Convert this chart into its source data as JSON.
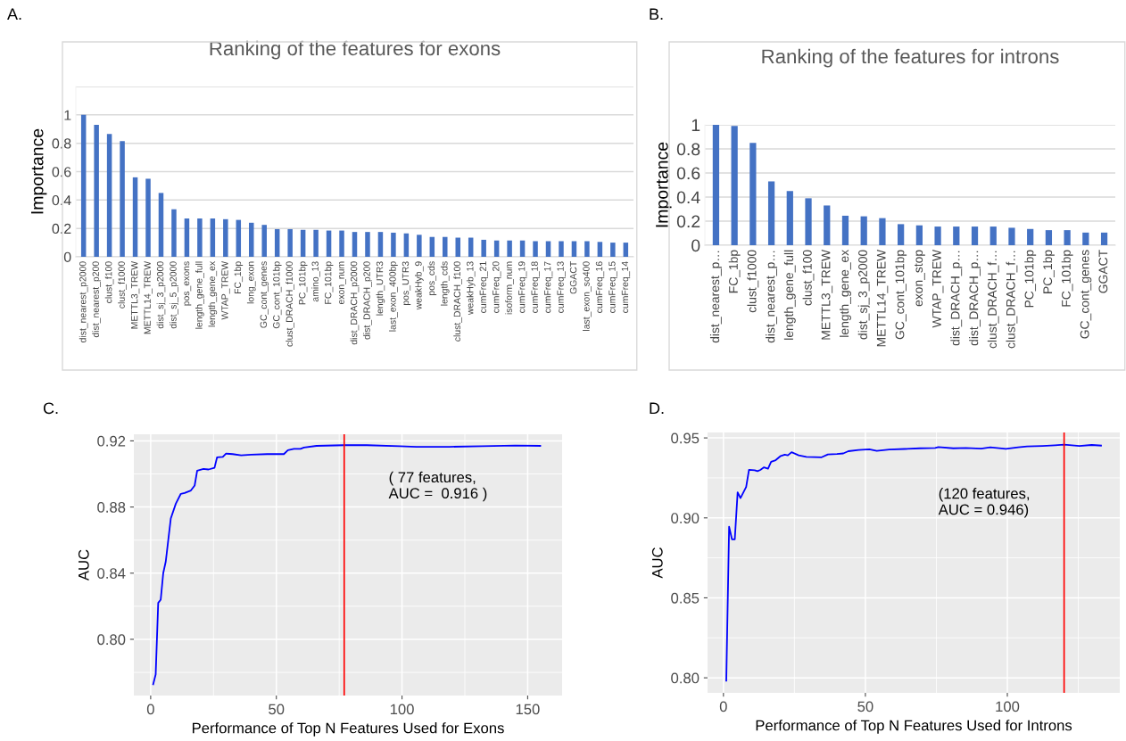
{
  "chart_data": [
    {
      "type": "bar",
      "title": "Ranking of the features for exons",
      "ylabel": "Importance",
      "annotations": [
        "A."
      ],
      "categories": [
        "dist_nearest_p2000",
        "dist_nearest_p200",
        "clust_f100",
        "clust_f1000",
        "METTL3_TREW",
        "METTL14_TREW",
        "dist_sj_3_p2000",
        "dist_sj_5_p2000",
        "pos_exons",
        "length_gene_full",
        "length_gene_ex",
        "WTAP_TREW",
        "FC_1bp",
        "long_exon",
        "GC_cont_genes",
        "GC_cont_101bp",
        "clust_DRACH_f1000",
        "PC_101bp",
        "amino_13",
        "FC_101bp",
        "exon_num",
        "dist_DRACH_p2000",
        "dist_DRACH_p200",
        "length_UTR3",
        "last_exon_400bp",
        "pos_UTR3",
        "weakHyb_9",
        "pos_cds",
        "length_cds",
        "clust_DRACH_f100",
        "weakHyb_13",
        "cumFreq_21",
        "cumFreq_20",
        "isoform_num",
        "cumFreq_19",
        "cumFreq_18",
        "cumFreq_17",
        "cumFreq_13",
        "GGACT",
        "last_exon_so400",
        "cumFreq_16",
        "cumFreq_15",
        "cumFreq_14"
      ],
      "values": [
        1,
        0.93,
        0.865,
        0.815,
        0.56,
        0.55,
        0.45,
        0.335,
        0.27,
        0.27,
        0.27,
        0.265,
        0.26,
        0.24,
        0.225,
        0.195,
        0.195,
        0.19,
        0.19,
        0.185,
        0.185,
        0.175,
        0.175,
        0.175,
        0.17,
        0.165,
        0.155,
        0.14,
        0.14,
        0.135,
        0.135,
        0.12,
        0.115,
        0.115,
        0.115,
        0.11,
        0.11,
        0.11,
        0.11,
        0.11,
        0.105,
        0.1,
        0.1
      ],
      "color": "#4472c4",
      "ylim": [
        0,
        1.2
      ],
      "yticks": [
        0,
        0.2,
        0.4,
        0.6,
        0.8,
        1,
        {
          "value": 1.2,
          "label": null
        }
      ],
      "grid": "y"
    },
    {
      "type": "bar",
      "title": "Ranking of the features for introns",
      "ylabel": "Importance",
      "annotations": [
        "B."
      ],
      "categories": [
        "dist_nearest_p…",
        "FC_1bp",
        "clust_f1000",
        "dist_nearest_p…",
        "length_gene_full",
        "clust_f100",
        "METTL3_TREW",
        "length_gene_ex",
        "dist_sj_3_p2000",
        "METTL14_TREW",
        "GC_cont_101bp",
        "exon_stop",
        "WTAP_TREW",
        "dist_DRACH_p…",
        "dist_DRACH_p…",
        "clust_DRACH_f…",
        "clust_DRACH_f…",
        "PC_101bp",
        "PC_1bp",
        "FC_101bp",
        "GC_cont_genes",
        "GGACT"
      ],
      "values": [
        1,
        0.99,
        0.85,
        0.53,
        0.45,
        0.39,
        0.33,
        0.245,
        0.24,
        0.225,
        0.175,
        0.165,
        0.155,
        0.155,
        0.155,
        0.155,
        0.145,
        0.135,
        0.125,
        0.125,
        0.105,
        0.105
      ],
      "color": "#4472c4",
      "ylim": [
        0,
        1
      ],
      "yticks": [
        0,
        0.2,
        0.4,
        0.6,
        0.8,
        1
      ],
      "grid": "y"
    },
    {
      "type": "line",
      "xlabel": "Performance of Top N Features Used for Exons",
      "ylabel": "AUC",
      "annotations": [
        "C."
      ],
      "x": [
        1,
        2,
        3,
        4,
        5,
        6,
        7,
        8,
        10,
        12,
        13.5,
        16,
        17.5,
        18.5,
        21,
        23,
        25.4,
        26.4,
        28.7,
        30,
        32.6,
        36,
        40,
        46.4,
        53,
        54.6,
        57,
        59.6,
        61,
        66,
        77,
        86,
        99,
        105.7,
        118.8,
        132,
        145,
        155
      ],
      "values": [
        0.7728,
        0.7788,
        0.822,
        0.824,
        0.84,
        0.847,
        0.86,
        0.873,
        0.882,
        0.888,
        0.8885,
        0.89,
        0.893,
        0.902,
        0.903,
        0.9027,
        0.9037,
        0.91,
        0.9103,
        0.9123,
        0.912,
        0.9113,
        0.9117,
        0.912,
        0.912,
        0.9144,
        0.9152,
        0.9152,
        0.916,
        0.917,
        0.9174,
        0.9174,
        0.9168,
        0.9164,
        0.9164,
        0.9168,
        0.9172,
        0.917
      ],
      "color": "#0000ff",
      "xlim": [
        -6.7,
        163.7
      ],
      "ylim": [
        0.766,
        0.924
      ],
      "xticks": [
        0,
        {
          "value": 25,
          "label": null
        },
        50,
        {
          "value": 75,
          "label": null
        },
        100,
        {
          "value": 125,
          "label": null
        },
        150
      ],
      "yticks": [
        {
          "value": 0.78,
          "label": null
        },
        {
          "value": 0.8,
          "label": "0.80"
        },
        {
          "value": 0.82,
          "label": null
        },
        0.84,
        {
          "value": 0.86,
          "label": null
        },
        0.88,
        {
          "value": 0.9,
          "label": null
        },
        0.92
      ],
      "ref_lines": [
        {
          "axis": "x",
          "value": 77,
          "label": "( 77 features,\nAUC =  0.916 )",
          "color": "#ff0000"
        }
      ],
      "grid": true
    },
    {
      "type": "line",
      "xlabel": "Performance of Top N Features Used for Introns",
      "ylabel": "AUC",
      "annotations": [
        "D."
      ],
      "x": [
        1,
        2,
        3,
        4,
        5,
        6,
        8,
        9,
        11,
        12,
        13,
        14.3,
        15.7,
        16.8,
        18.4,
        20,
        21.6,
        22.7,
        24,
        26.5,
        29.2,
        34.6,
        36.8,
        40,
        42.2,
        44,
        47.6,
        51.4,
        54,
        58.4,
        63.8,
        69.2,
        74.6,
        75.7,
        81,
        85.4,
        90.8,
        94,
        99.5,
        103.8,
        107,
        112.4,
        116.8,
        120,
        125.4,
        129.7,
        133
      ],
      "values": [
        0.7982,
        0.8945,
        0.8866,
        0.8866,
        0.916,
        0.9124,
        0.9193,
        0.93,
        0.9298,
        0.9292,
        0.93,
        0.9316,
        0.9308,
        0.9351,
        0.9361,
        0.9385,
        0.9395,
        0.9391,
        0.9411,
        0.9391,
        0.9381,
        0.9379,
        0.9397,
        0.9399,
        0.9403,
        0.9417,
        0.9425,
        0.9429,
        0.9419,
        0.9427,
        0.9431,
        0.9435,
        0.9437,
        0.9443,
        0.9435,
        0.9437,
        0.9433,
        0.9441,
        0.9431,
        0.9441,
        0.9447,
        0.945,
        0.9454,
        0.9458,
        0.945,
        0.9456,
        0.9452
      ],
      "color": "#0000ff",
      "xlim": [
        -5.6,
        139.6
      ],
      "ylim": [
        0.7906,
        0.9534
      ],
      "xticks": [
        0,
        {
          "value": 25,
          "label": null
        },
        50,
        {
          "value": 75,
          "label": null
        },
        100,
        {
          "value": 125,
          "label": null
        }
      ],
      "yticks": [
        {
          "value": 0.8,
          "label": "0.80"
        },
        {
          "value": 0.825,
          "label": null
        },
        0.85,
        {
          "value": 0.875,
          "label": null
        },
        {
          "value": 0.9,
          "label": "0.90"
        },
        {
          "value": 0.925,
          "label": null
        },
        0.95
      ],
      "ref_lines": [
        {
          "axis": "x",
          "value": 120,
          "label": "(120 features,\nAUC = 0.946)",
          "color": "#ff0000"
        }
      ],
      "grid": true
    }
  ]
}
